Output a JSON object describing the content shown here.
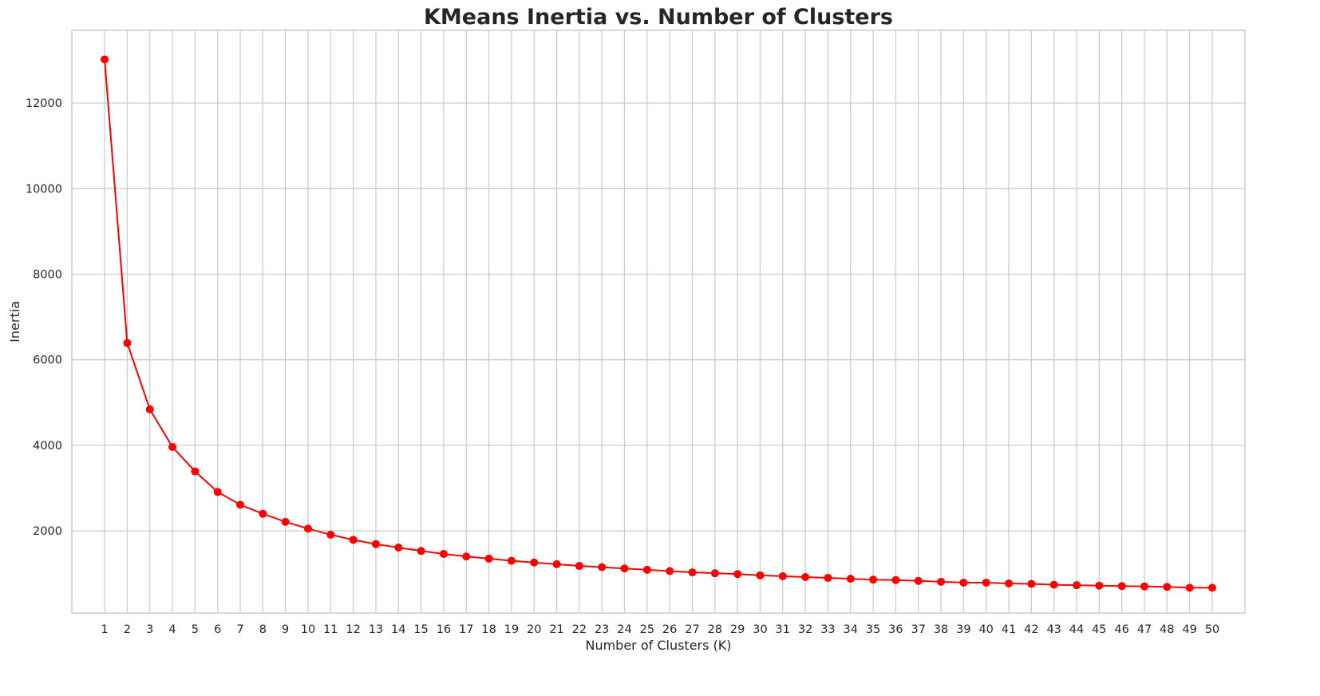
{
  "chart_data": {
    "type": "line",
    "title": "KMeans Inertia vs. Number of Clusters",
    "xlabel": "Number of Clusters (K)",
    "ylabel": "Inertia",
    "x": [
      1,
      2,
      3,
      4,
      5,
      6,
      7,
      8,
      9,
      10,
      11,
      12,
      13,
      14,
      15,
      16,
      17,
      18,
      19,
      20,
      21,
      22,
      23,
      24,
      25,
      26,
      27,
      28,
      29,
      30,
      31,
      32,
      33,
      34,
      35,
      36,
      37,
      38,
      39,
      40,
      41,
      42,
      43,
      44,
      45,
      46,
      47,
      48,
      49,
      50
    ],
    "xticks": [
      "1",
      "2",
      "3",
      "4",
      "5",
      "6",
      "7",
      "8",
      "9",
      "10",
      "11",
      "12",
      "13",
      "14",
      "15",
      "16",
      "17",
      "18",
      "19",
      "20",
      "21",
      "22",
      "23",
      "24",
      "25",
      "26",
      "27",
      "28",
      "29",
      "30",
      "31",
      "32",
      "33",
      "34",
      "35",
      "36",
      "37",
      "38",
      "39",
      "40",
      "41",
      "42",
      "43",
      "44",
      "45",
      "46",
      "47",
      "48",
      "49",
      "50"
    ],
    "xlim": [
      -0.45,
      51.45
    ],
    "yticks": [
      "2000",
      "4000",
      "6000",
      "8000",
      "10000",
      "12000"
    ],
    "ylim": [
      80,
      13700
    ],
    "grid": true,
    "legend": "none",
    "series": [
      {
        "color": "#ff0000",
        "marker": "circle",
        "values": [
          13020,
          6390,
          4840,
          3960,
          3390,
          2910,
          2610,
          2400,
          2210,
          2050,
          1910,
          1790,
          1690,
          1610,
          1530,
          1460,
          1400,
          1350,
          1300,
          1260,
          1220,
          1180,
          1150,
          1120,
          1090,
          1060,
          1030,
          1010,
          990,
          960,
          940,
          920,
          900,
          880,
          860,
          850,
          830,
          810,
          790,
          790,
          770,
          760,
          740,
          730,
          720,
          710,
          700,
          690,
          670,
          670
        ]
      }
    ]
  }
}
